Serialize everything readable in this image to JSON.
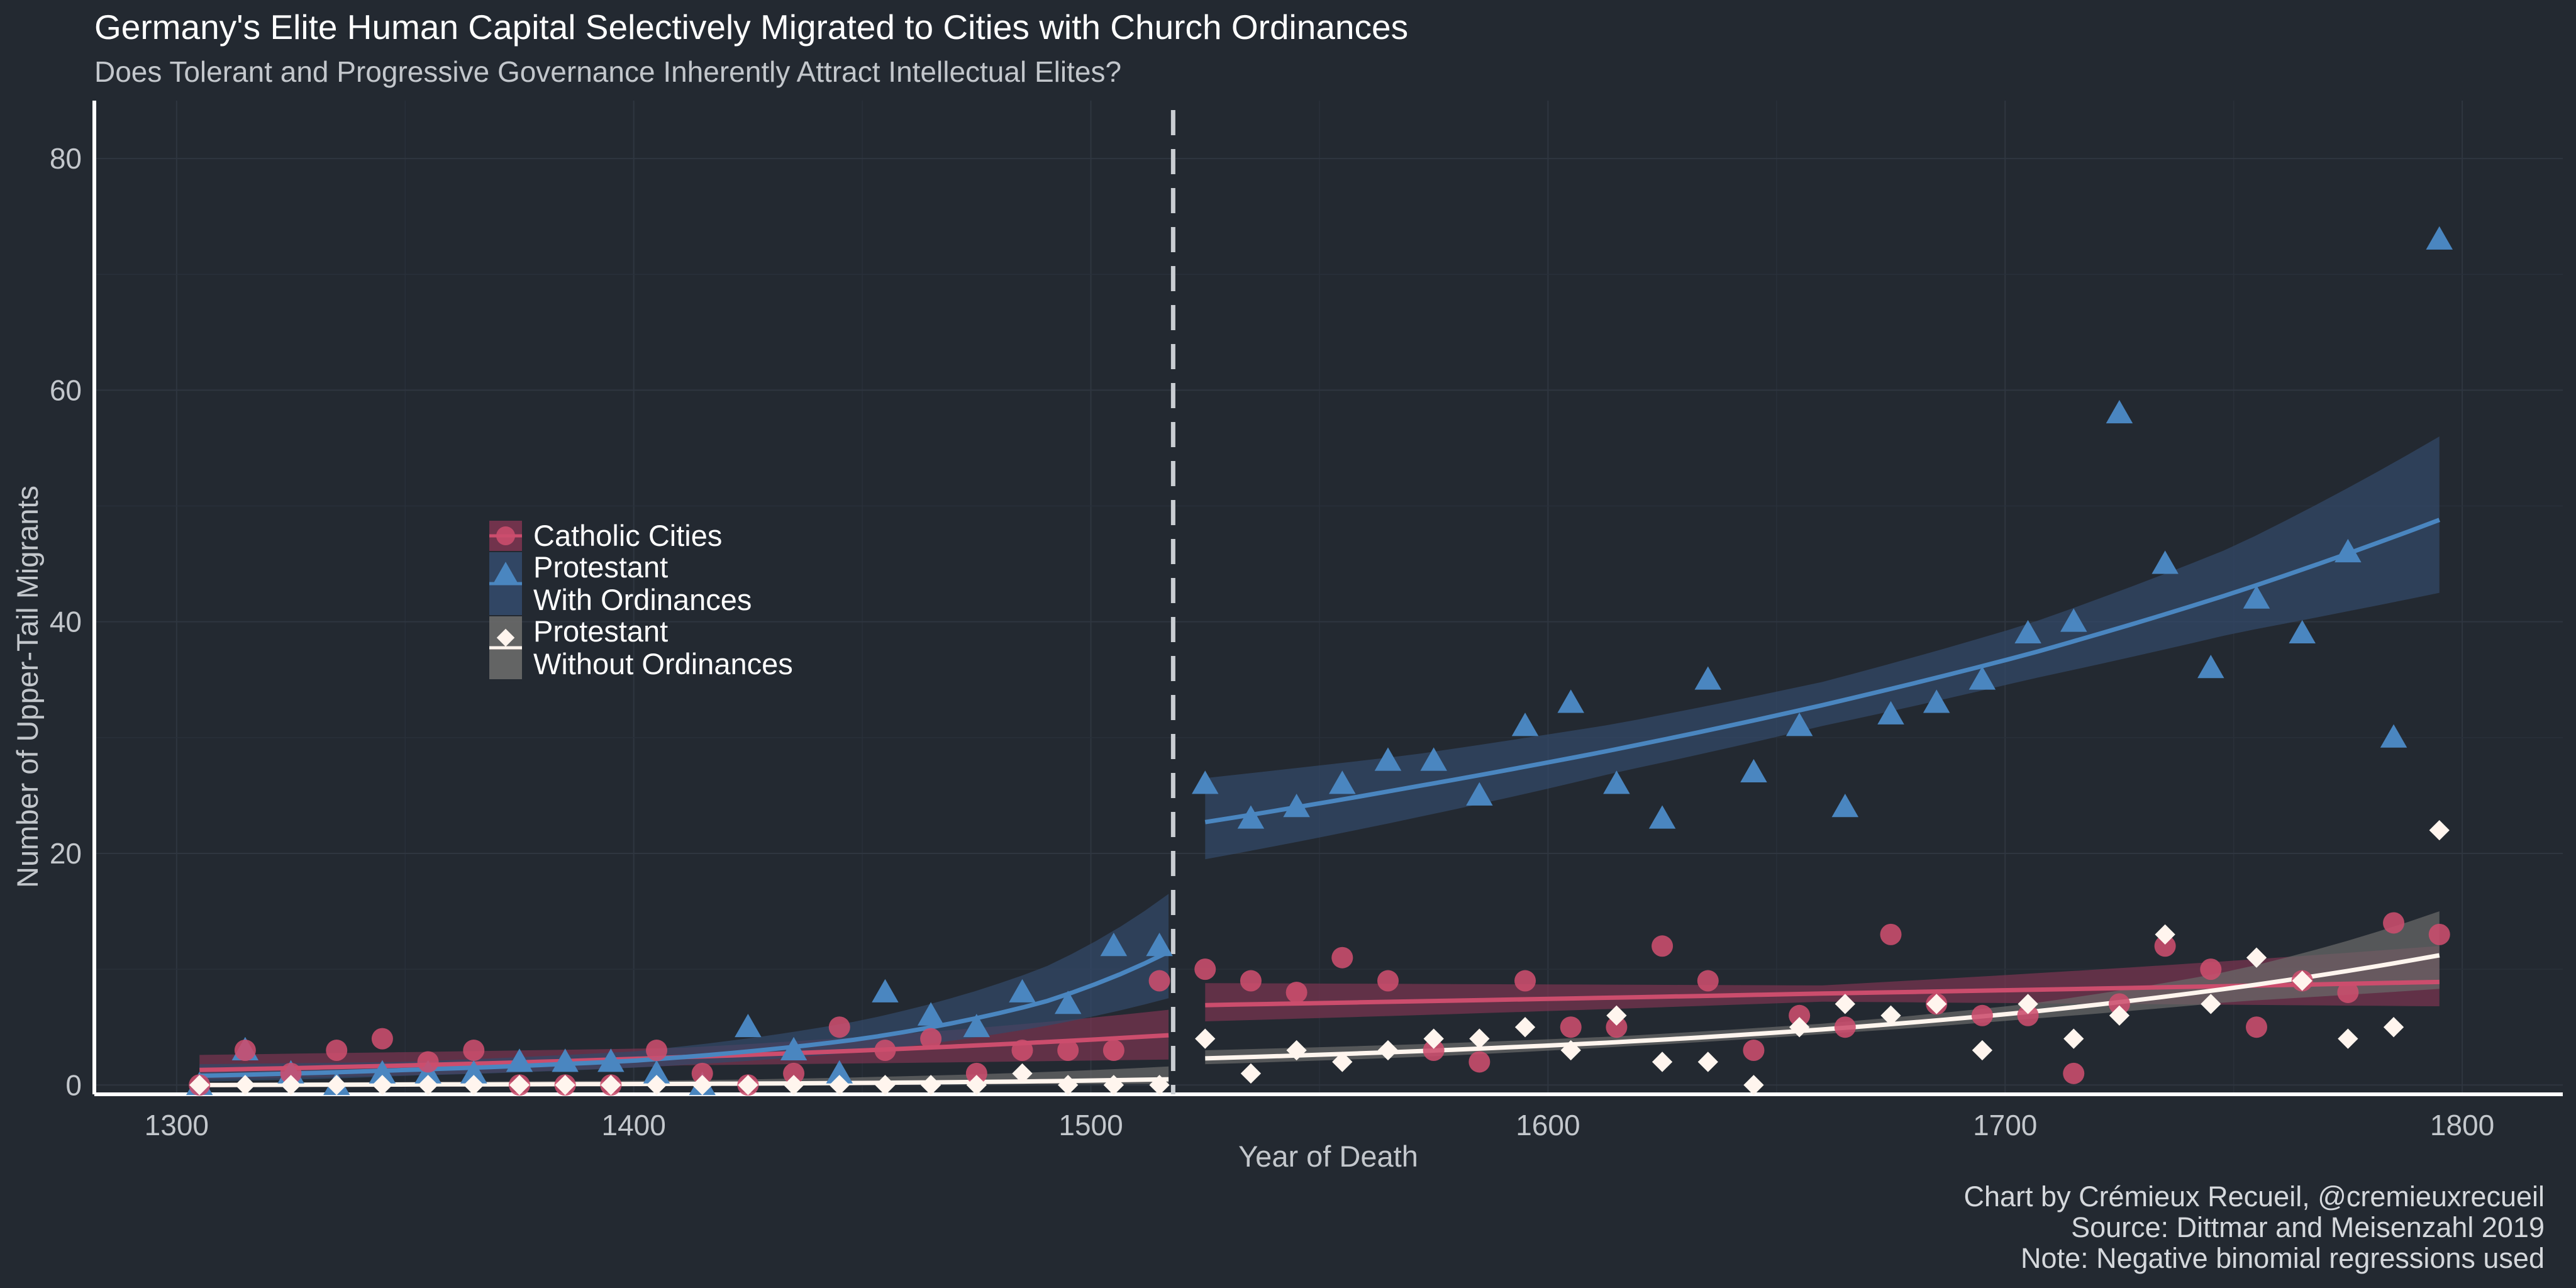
{
  "chart_data": {
    "type": "scatter",
    "title": "Germany's Elite Human Capital Selectively Migrated to Cities with Church Ordinances",
    "subtitle": "Does Tolerant and Progressive Governance Inherently Attract Intellectual Elites?",
    "xlabel": "Year of Death",
    "ylabel": "Number of Upper-Tail Migrants",
    "xlim": [
      1282,
      1822
    ],
    "ylim": [
      -0.8,
      85
    ],
    "x_ticks": [
      1300,
      1400,
      1500,
      1600,
      1700,
      1800
    ],
    "y_ticks": [
      0,
      20,
      40,
      60,
      80
    ],
    "reference_line": {
      "x": 1518,
      "style": "dashed"
    },
    "grid": true,
    "legend_position": "left-middle",
    "captions": [
      "Chart by Crémieux Recueil, @cremieuxrecueil",
      "Source: Dittmar and Meisenzahl 2019",
      "Note: Negative binomial regressions used"
    ],
    "series": [
      {
        "name": "Catholic Cities",
        "legend_lines": [
          "Catholic Cities"
        ],
        "marker": "circle",
        "color": "#cc4d6d",
        "band_color": "#7a3450",
        "points": [
          [
            1305,
            0
          ],
          [
            1315,
            3
          ],
          [
            1325,
            1
          ],
          [
            1335,
            3
          ],
          [
            1345,
            4
          ],
          [
            1355,
            2
          ],
          [
            1365,
            3
          ],
          [
            1375,
            0
          ],
          [
            1385,
            0
          ],
          [
            1395,
            0
          ],
          [
            1405,
            3
          ],
          [
            1415,
            1
          ],
          [
            1425,
            0
          ],
          [
            1435,
            1
          ],
          [
            1445,
            5
          ],
          [
            1455,
            3
          ],
          [
            1465,
            4
          ],
          [
            1475,
            1
          ],
          [
            1485,
            3
          ],
          [
            1495,
            3
          ],
          [
            1505,
            3
          ],
          [
            1515,
            9
          ],
          [
            1525,
            10
          ],
          [
            1535,
            9
          ],
          [
            1545,
            8
          ],
          [
            1555,
            11
          ],
          [
            1565,
            9
          ],
          [
            1575,
            3
          ],
          [
            1585,
            2
          ],
          [
            1595,
            9
          ],
          [
            1605,
            5
          ],
          [
            1615,
            5
          ],
          [
            1625,
            12
          ],
          [
            1635,
            9
          ],
          [
            1645,
            3
          ],
          [
            1655,
            6
          ],
          [
            1665,
            5
          ],
          [
            1675,
            13
          ],
          [
            1685,
            7
          ],
          [
            1695,
            6
          ],
          [
            1705,
            6
          ],
          [
            1715,
            1
          ],
          [
            1725,
            7
          ],
          [
            1735,
            12
          ],
          [
            1745,
            10
          ],
          [
            1755,
            5
          ],
          [
            1765,
            9
          ],
          [
            1775,
            8
          ],
          [
            1785,
            14
          ],
          [
            1795,
            13
          ]
        ],
        "fit_pre": {
          "x": [
            1305,
            1410,
            1517
          ],
          "y": [
            1.3,
            2.4,
            4.3
          ],
          "band_lower": [
            0.5,
            1.7,
            2.2
          ],
          "band_upper": [
            2.6,
            3.2,
            6.5
          ]
        },
        "fit_post": {
          "x": [
            1525,
            1660,
            1795
          ],
          "y": [
            6.9,
            7.9,
            8.9
          ],
          "band_lower": [
            5.5,
            7.2,
            6.8
          ],
          "band_upper": [
            8.8,
            8.6,
            12.0
          ]
        }
      },
      {
        "name": "Protestant With Ordinances",
        "legend_lines": [
          "Protestant",
          "With Ordinances"
        ],
        "marker": "triangle",
        "color": "#4a86c0",
        "band_color": "#33496a",
        "points": [
          [
            1305,
            0
          ],
          [
            1315,
            3
          ],
          [
            1325,
            1
          ],
          [
            1335,
            0
          ],
          [
            1345,
            1
          ],
          [
            1355,
            1
          ],
          [
            1365,
            1
          ],
          [
            1375,
            2
          ],
          [
            1385,
            2
          ],
          [
            1395,
            2
          ],
          [
            1405,
            1
          ],
          [
            1415,
            0
          ],
          [
            1425,
            5
          ],
          [
            1435,
            3
          ],
          [
            1445,
            1
          ],
          [
            1455,
            8
          ],
          [
            1465,
            6
          ],
          [
            1475,
            5
          ],
          [
            1485,
            8
          ],
          [
            1495,
            7
          ],
          [
            1505,
            12
          ],
          [
            1515,
            12
          ],
          [
            1525,
            26
          ],
          [
            1535,
            23
          ],
          [
            1545,
            24
          ],
          [
            1555,
            26
          ],
          [
            1565,
            28
          ],
          [
            1575,
            28
          ],
          [
            1585,
            25
          ],
          [
            1595,
            31
          ],
          [
            1605,
            33
          ],
          [
            1615,
            26
          ],
          [
            1625,
            23
          ],
          [
            1635,
            35
          ],
          [
            1645,
            27
          ],
          [
            1655,
            31
          ],
          [
            1665,
            24
          ],
          [
            1675,
            32
          ],
          [
            1685,
            33
          ],
          [
            1695,
            35
          ],
          [
            1705,
            39
          ],
          [
            1715,
            40
          ],
          [
            1725,
            58
          ],
          [
            1735,
            45
          ],
          [
            1745,
            36
          ],
          [
            1755,
            42
          ],
          [
            1765,
            39
          ],
          [
            1775,
            46
          ],
          [
            1785,
            30
          ],
          [
            1795,
            73
          ]
        ],
        "fit_pre": {
          "x": [
            1305,
            1350,
            1400,
            1450,
            1490,
            1517
          ],
          "y": [
            0.8,
            1.3,
            2.1,
            4.0,
            7.2,
            11.5
          ],
          "band_lower": [
            0.3,
            0.8,
            1.5,
            2.9,
            5.1,
            7.5
          ],
          "band_upper": [
            1.8,
            2.0,
            2.9,
            5.6,
            10.2,
            16.5
          ]
        },
        "fit_post": {
          "x": [
            1525,
            1570,
            1615,
            1660,
            1705,
            1750,
            1795
          ],
          "y": [
            22.7,
            25.7,
            29.0,
            32.8,
            37.2,
            42.5,
            48.8
          ],
          "band_lower": [
            19.5,
            23.0,
            27.0,
            31.0,
            35.0,
            39.0,
            42.5
          ],
          "band_upper": [
            26.5,
            28.5,
            31.2,
            34.8,
            39.8,
            46.5,
            56.0
          ]
        }
      },
      {
        "name": "Protestant Without Ordinances",
        "legend_lines": [
          "Protestant",
          "Without Ordinances"
        ],
        "marker": "diamond",
        "color": "#fff5ee",
        "band_color": "#6a6a6a",
        "points": [
          [
            1305,
            0
          ],
          [
            1315,
            0
          ],
          [
            1325,
            0
          ],
          [
            1335,
            0
          ],
          [
            1345,
            0
          ],
          [
            1355,
            0
          ],
          [
            1365,
            0
          ],
          [
            1375,
            0
          ],
          [
            1385,
            0
          ],
          [
            1395,
            0
          ],
          [
            1405,
            0
          ],
          [
            1415,
            0
          ],
          [
            1425,
            0
          ],
          [
            1435,
            0
          ],
          [
            1445,
            0
          ],
          [
            1455,
            0
          ],
          [
            1465,
            0
          ],
          [
            1475,
            0
          ],
          [
            1485,
            1
          ],
          [
            1495,
            0
          ],
          [
            1505,
            0
          ],
          [
            1515,
            0
          ],
          [
            1525,
            4
          ],
          [
            1535,
            1
          ],
          [
            1545,
            3
          ],
          [
            1555,
            2
          ],
          [
            1565,
            3
          ],
          [
            1575,
            4
          ],
          [
            1585,
            4
          ],
          [
            1595,
            5
          ],
          [
            1605,
            3
          ],
          [
            1615,
            6
          ],
          [
            1625,
            2
          ],
          [
            1635,
            2
          ],
          [
            1645,
            0
          ],
          [
            1655,
            5
          ],
          [
            1665,
            7
          ],
          [
            1675,
            6
          ],
          [
            1685,
            7
          ],
          [
            1695,
            3
          ],
          [
            1705,
            7
          ],
          [
            1715,
            4
          ],
          [
            1725,
            6
          ],
          [
            1735,
            13
          ],
          [
            1745,
            7
          ],
          [
            1755,
            11
          ],
          [
            1765,
            9
          ],
          [
            1775,
            4
          ],
          [
            1785,
            5
          ],
          [
            1795,
            22
          ]
        ],
        "fit_pre": {
          "x": [
            1305,
            1410,
            1517
          ],
          "y": [
            0.0,
            0.1,
            0.5
          ],
          "band_lower": [
            0.0,
            0.0,
            0.1
          ],
          "band_upper": [
            0.2,
            0.4,
            1.6
          ]
        },
        "fit_post": {
          "x": [
            1525,
            1570,
            1615,
            1660,
            1705,
            1750,
            1795
          ],
          "y": [
            2.3,
            2.9,
            3.7,
            4.8,
            6.3,
            8.4,
            11.2
          ],
          "band_lower": [
            1.8,
            2.4,
            3.3,
            4.4,
            5.7,
            7.2,
            8.3
          ],
          "band_upper": [
            3.0,
            3.5,
            4.2,
            5.3,
            7.0,
            9.9,
            15.0
          ]
        }
      }
    ]
  }
}
